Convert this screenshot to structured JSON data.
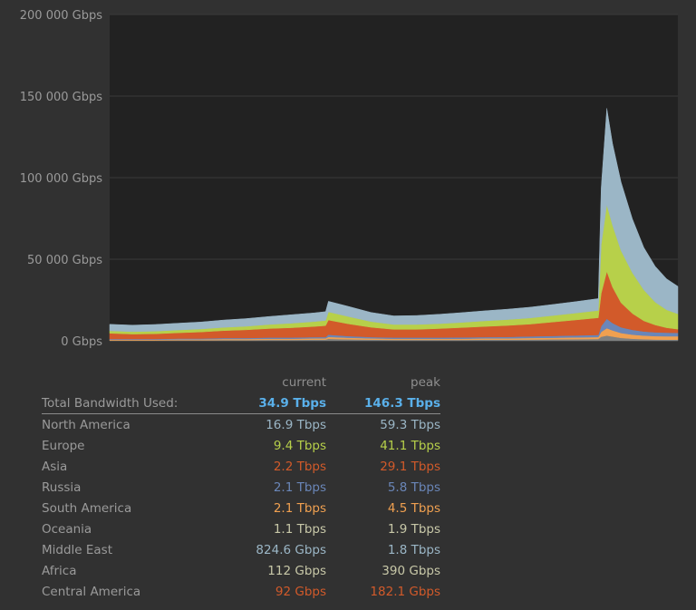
{
  "chart_data": {
    "type": "area",
    "stacked": true,
    "ylim": [
      0,
      200000
    ],
    "yticks": [
      "0 Gbps",
      "50 000 Gbps",
      "100 000 Gbps",
      "150 000 Gbps",
      "200 000 Gbps"
    ],
    "grid": true,
    "x": [
      0,
      4,
      8,
      12,
      16,
      20,
      24,
      28,
      32,
      36,
      38,
      38.5,
      42,
      46,
      50,
      54,
      58,
      62,
      66,
      70,
      74,
      78,
      82,
      86,
      86.5,
      87.5,
      88.5,
      90,
      92,
      94,
      96,
      98,
      100
    ],
    "series": [
      {
        "color": "#7f8080",
        "values": [
          300,
          300,
          300,
          400,
          400,
          500,
          500,
          600,
          600,
          700,
          700,
          1200,
          900,
          700,
          600,
          600,
          600,
          600,
          700,
          700,
          800,
          900,
          1000,
          1100,
          2500,
          3200,
          2600,
          1800,
          1300,
          1000,
          800,
          700,
          700
        ]
      },
      {
        "color": "#f0a050",
        "values": [
          400,
          400,
          400,
          500,
          500,
          600,
          600,
          700,
          700,
          800,
          800,
          1200,
          1000,
          800,
          700,
          700,
          700,
          700,
          800,
          800,
          900,
          1000,
          1100,
          1200,
          3000,
          4500,
          3800,
          3000,
          2500,
          2200,
          2100,
          2100,
          2100
        ]
      },
      {
        "color": "#6a86b8",
        "values": [
          400,
          400,
          400,
          500,
          500,
          600,
          600,
          700,
          700,
          800,
          800,
          1300,
          1000,
          800,
          700,
          700,
          700,
          800,
          800,
          900,
          1000,
          1100,
          1200,
          1300,
          3500,
          5800,
          4500,
          3500,
          2900,
          2500,
          2300,
          2200,
          2100
        ]
      },
      {
        "color": "#d25a2a",
        "values": [
          3500,
          3000,
          3200,
          3500,
          4000,
          4500,
          5000,
          5500,
          6000,
          6500,
          7000,
          9000,
          7500,
          6000,
          5000,
          5000,
          5500,
          6000,
          6500,
          7000,
          7500,
          8500,
          9500,
          10500,
          20000,
          29000,
          22000,
          15000,
          10000,
          6500,
          4500,
          3000,
          2200
        ]
      },
      {
        "color": "#b7d04a",
        "values": [
          1500,
          1500,
          1600,
          1700,
          1800,
          2000,
          2200,
          2500,
          2800,
          3000,
          3200,
          5000,
          4500,
          3500,
          3000,
          3000,
          3000,
          3200,
          3400,
          3600,
          3800,
          4000,
          4200,
          4500,
          30000,
          41000,
          38000,
          32000,
          25000,
          19000,
          14000,
          11000,
          9400
        ]
      },
      {
        "color": "#9bb6c6",
        "values": [
          4000,
          4000,
          4100,
          4200,
          4300,
          4500,
          4700,
          4900,
          5200,
          5300,
          5400,
          6500,
          6200,
          5600,
          5300,
          5500,
          5800,
          6000,
          6200,
          6400,
          6600,
          6800,
          7000,
          7300,
          35000,
          59000,
          50000,
          42000,
          33000,
          26000,
          22000,
          19000,
          16900
        ]
      }
    ]
  },
  "table": {
    "header": {
      "current": "current",
      "peak": "peak"
    },
    "total": {
      "label": "Total Bandwidth Used:",
      "current": "34.9 Tbps",
      "peak": "146.3 Tbps",
      "color": "#5ab0ea"
    },
    "rows": [
      {
        "label": "North America",
        "current": "16.9 Tbps",
        "peak": "59.3 Tbps",
        "color": "#9bb6c6"
      },
      {
        "label": "Europe",
        "current": "9.4 Tbps",
        "peak": "41.1 Tbps",
        "color": "#b7d04a"
      },
      {
        "label": "Asia",
        "current": "2.2 Tbps",
        "peak": "29.1 Tbps",
        "color": "#d25a2a"
      },
      {
        "label": "Russia",
        "current": "2.1 Tbps",
        "peak": "5.8 Tbps",
        "color": "#6a86b8"
      },
      {
        "label": "South America",
        "current": "2.1 Tbps",
        "peak": "4.5 Tbps",
        "color": "#f0a050"
      },
      {
        "label": "Oceania",
        "current": "1.1 Tbps",
        "peak": "1.9 Tbps",
        "color": "#c8c8a8"
      },
      {
        "label": "Middle East",
        "current": "824.6 Gbps",
        "peak": "1.8 Tbps",
        "color": "#9bb6c6"
      },
      {
        "label": "Africa",
        "current": "112 Gbps",
        "peak": "390 Gbps",
        "color": "#c8c8a8"
      },
      {
        "label": "Central America",
        "current": "92 Gbps",
        "peak": "182.1 Gbps",
        "color": "#d25a2a"
      }
    ]
  }
}
